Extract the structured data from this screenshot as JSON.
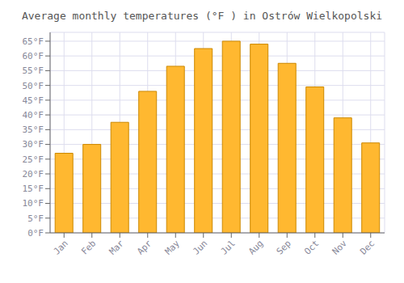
{
  "chart_data": {
    "type": "bar",
    "title": "Average monthly temperatures (°F ) in Ostrów Wielkopolski",
    "categories": [
      "Jan",
      "Feb",
      "Mar",
      "Apr",
      "May",
      "Jun",
      "Jul",
      "Aug",
      "Sep",
      "Oct",
      "Nov",
      "Dec"
    ],
    "values": [
      27,
      30,
      37.5,
      48,
      56.5,
      62.5,
      65,
      64,
      57.5,
      49.5,
      39,
      30.5
    ],
    "color": "#FFB830",
    "ylim": [
      0,
      68
    ],
    "yticks": [
      {
        "value": 0,
        "label": "0°F"
      },
      {
        "value": 5,
        "label": "5°F"
      },
      {
        "value": 10,
        "label": "10°F"
      },
      {
        "value": 15,
        "label": "15°F"
      },
      {
        "value": 20,
        "label": "20°F"
      },
      {
        "value": 25,
        "label": "25°F"
      },
      {
        "value": 30,
        "label": "30°F"
      },
      {
        "value": 35,
        "label": "35°F"
      },
      {
        "value": 40,
        "label": "40°F"
      },
      {
        "value": 45,
        "label": "45°F"
      },
      {
        "value": 50,
        "label": "50°F"
      },
      {
        "value": 55,
        "label": "55°F"
      },
      {
        "value": 60,
        "label": "60°F"
      },
      {
        "value": 65,
        "label": "65°F"
      }
    ],
    "grid": true
  }
}
